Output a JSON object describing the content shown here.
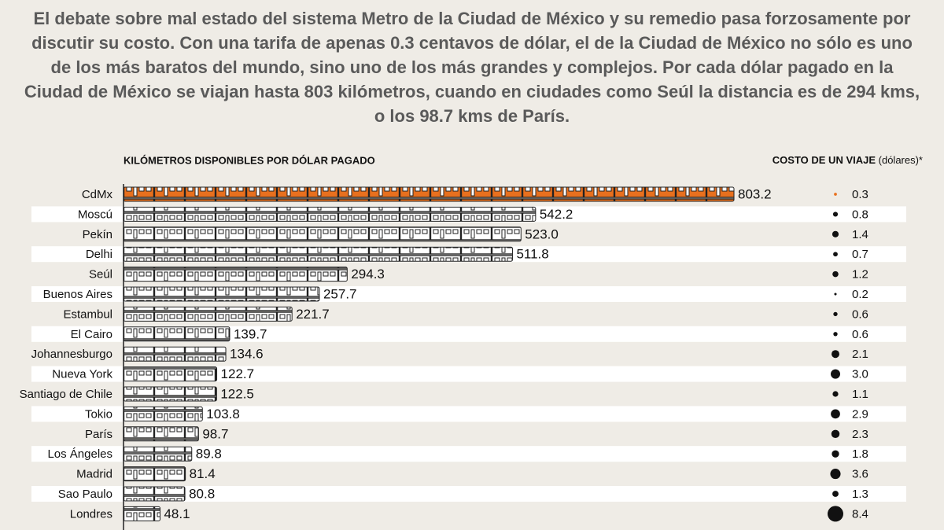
{
  "intro": "El debate sobre mal estado del sistema Metro de la Ciudad de México y su remedio pasa forzosamente por discutir su costo. Con una tarifa de apenas 0.3 centavos de dólar, el de la Ciudad de México no sólo es uno de los más baratos del mundo, sino uno de los más grandes y complejos. Por cada dólar pagado en la Ciudad de México se viajan hasta 803 kilómetros, cuando en ciudades como Seúl la distancia es de 294 kms, o los 98.7 kms de París.",
  "chart_data": [
    {
      "type": "bar",
      "orientation": "horizontal",
      "xlabel": "KILÓMETROS DISPONIBLES POR DÓLAR PAGADO",
      "categories": [
        "CdMx",
        "Moscú",
        "Pekín",
        "Delhi",
        "Seúl",
        "Buenos Aires",
        "Estambul",
        "El Cairo",
        "Johannesburgo",
        "Nueva York",
        "Santiago de Chile",
        "Tokio",
        "París",
        "Los Ángeles",
        "Madrid",
        "Sao Paulo",
        "Londres"
      ],
      "values": [
        803.2,
        542.2,
        523.0,
        511.8,
        294.3,
        257.7,
        221.7,
        139.7,
        134.6,
        122.7,
        122.5,
        103.8,
        98.7,
        89.8,
        81.4,
        80.8,
        48.1
      ],
      "value_labels": [
        "803.2",
        "542.2",
        "523.0",
        "511.8",
        "294.3",
        "257.7",
        "221.7",
        "139.7",
        "134.6",
        "122.7",
        "122.5",
        "103.8",
        "98.7",
        "89.8",
        "81.4",
        "80.8",
        "48.1"
      ],
      "color": "#ffffff",
      "highlight_color": "#e8701e"
    },
    {
      "type": "dot",
      "title": "COSTO DE UN VIAJE",
      "unit": "(dólares)*",
      "values": [
        0.3,
        0.8,
        1.4,
        0.7,
        1.2,
        0.2,
        0.6,
        0.6,
        2.1,
        3.0,
        1.1,
        2.9,
        2.3,
        1.8,
        3.6,
        1.3,
        8.4
      ],
      "value_labels": [
        "0.3",
        "0.8",
        "1.4",
        "0.7",
        "1.2",
        "0.2",
        "0.6",
        "0.6",
        "2.1",
        "3.0",
        "1.1",
        "2.9",
        "2.3",
        "1.8",
        "3.6",
        "1.3",
        "8.4"
      ],
      "color": "#111111",
      "highlight_color": "#e8701e"
    }
  ]
}
